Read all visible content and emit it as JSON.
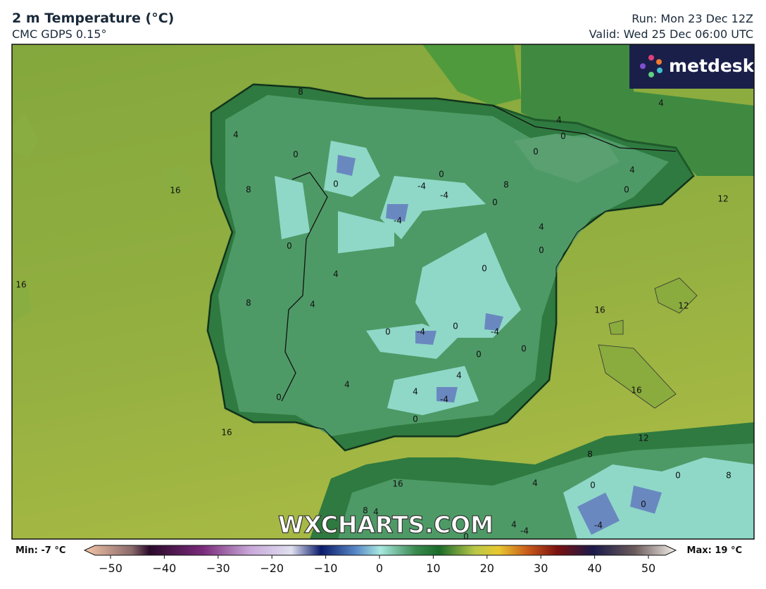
{
  "header": {
    "title": "2 m Temperature (°C)",
    "subtitle": "CMC GDPS 0.15°",
    "run": "Run: Mon 23 Dec 12Z",
    "valid": "Valid: Wed 25 Dec 06:00 UTC"
  },
  "logo": "metdesk",
  "watermark": "WXCHARTS.COM",
  "map": {
    "contour_labels": [
      8,
      4,
      0,
      0,
      8,
      16,
      0,
      -4,
      -4,
      8,
      0,
      -4,
      4,
      0,
      0,
      4,
      0,
      0,
      4,
      4,
      0,
      12,
      16,
      4,
      8,
      4,
      0,
      16,
      12,
      0,
      -4,
      0,
      -4,
      0,
      0,
      4,
      4,
      4,
      -4,
      0,
      0,
      16,
      16,
      12,
      8,
      16,
      4,
      0,
      0,
      8,
      0,
      8,
      4,
      -4,
      4,
      -4,
      0
    ]
  },
  "colorbar": {
    "min": "Min: -7 °C",
    "max": "Max: 19 °C",
    "xlim": [
      -50,
      50
    ],
    "ticks": [
      {
        "value": -50,
        "label": "−50"
      },
      {
        "value": -40,
        "label": "−40"
      },
      {
        "value": -30,
        "label": "−30"
      },
      {
        "value": -20,
        "label": "−20"
      },
      {
        "value": -10,
        "label": "−10"
      },
      0,
      10,
      20,
      30,
      40,
      50
    ]
  }
}
